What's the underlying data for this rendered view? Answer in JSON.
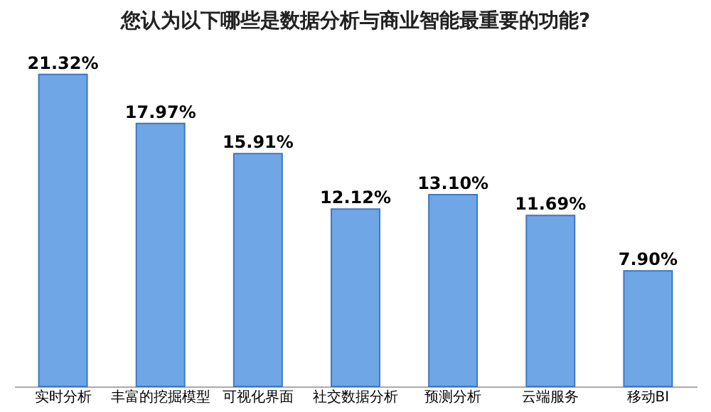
{
  "chart_data": {
    "type": "bar",
    "title": "您认为以下哪些是数据分析与商业智能最重要的功能?",
    "categories": [
      "实时分析",
      "丰富的挖掘模型",
      "可视化界面",
      "社交数据分析",
      "预测分析",
      "云端服务",
      "移动BI"
    ],
    "values": [
      21.32,
      17.97,
      15.91,
      12.12,
      13.1,
      11.69,
      7.9
    ],
    "value_labels": [
      "21.32%",
      "17.97%",
      "15.91%",
      "12.12%",
      "13.10%",
      "11.69%",
      "7.90%"
    ],
    "color": "#6ea6e6",
    "grid": false
  }
}
